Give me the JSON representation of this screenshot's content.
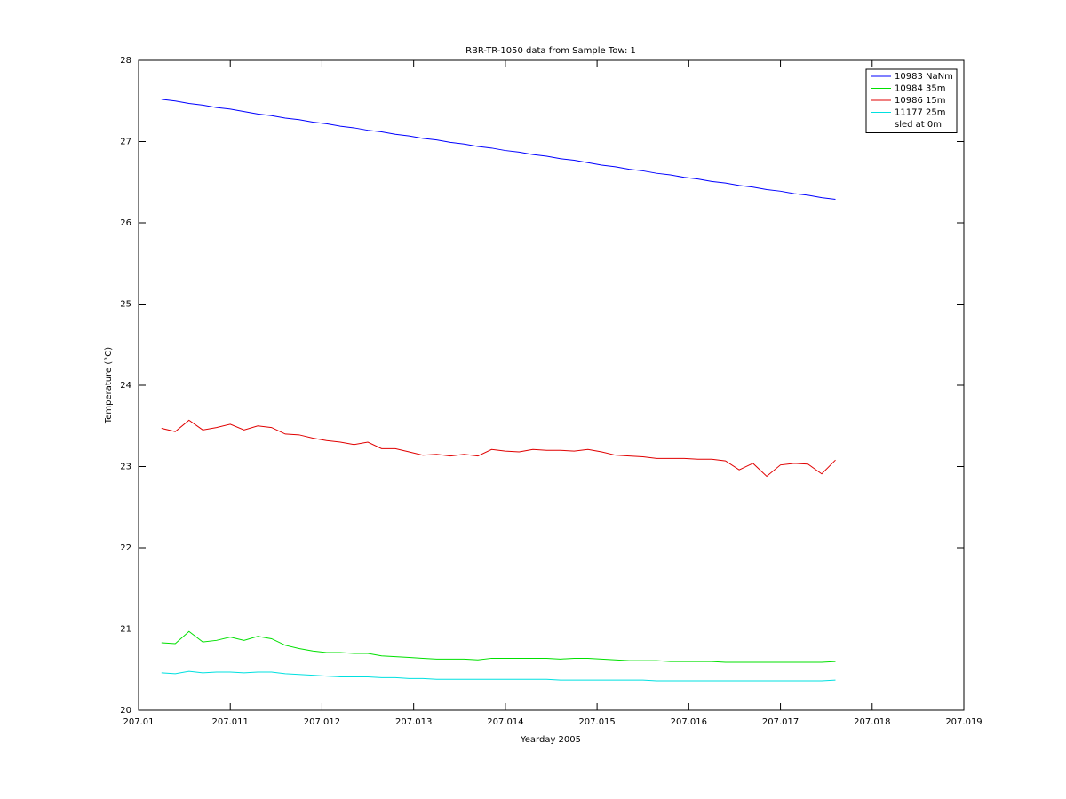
{
  "chart_data": {
    "type": "line",
    "title": "RBR-TR-1050 data from Sample Tow: 1",
    "x_label": "Yearday 2005",
    "y_label": "Temperature (°C)",
    "x": [
      207.01025,
      207.0104,
      207.01055,
      207.0107,
      207.01085,
      207.011,
      207.01115,
      207.0113,
      207.01145,
      207.0116,
      207.01175,
      207.0119,
      207.01205,
      207.0122,
      207.01235,
      207.0125,
      207.01265,
      207.0128,
      207.01295,
      207.0131,
      207.01325,
      207.0134,
      207.01355,
      207.0137,
      207.01385,
      207.014,
      207.01415,
      207.0143,
      207.01445,
      207.0146,
      207.01475,
      207.0149,
      207.01505,
      207.0152,
      207.01535,
      207.0155,
      207.01565,
      207.0158,
      207.01595,
      207.0161,
      207.01625,
      207.0164,
      207.01655,
      207.0167,
      207.01685,
      207.017,
      207.01715,
      207.0173,
      207.01745,
      207.0176
    ],
    "series": [
      {
        "name": "10983 NaNm",
        "color": "#0000ff",
        "values": [
          27.52,
          27.5,
          27.47,
          27.45,
          27.42,
          27.4,
          27.37,
          27.34,
          27.32,
          27.29,
          27.27,
          27.24,
          27.22,
          27.19,
          27.17,
          27.14,
          27.12,
          27.09,
          27.07,
          27.04,
          27.02,
          26.99,
          26.97,
          26.94,
          26.92,
          26.89,
          26.87,
          26.84,
          26.82,
          26.79,
          26.77,
          26.74,
          26.71,
          26.69,
          26.66,
          26.64,
          26.61,
          26.59,
          26.56,
          26.54,
          26.51,
          26.49,
          26.46,
          26.44,
          26.41,
          26.39,
          26.36,
          26.34,
          26.31,
          26.29
        ]
      },
      {
        "name": "10984 35m",
        "color": "#00e000",
        "values": [
          20.83,
          20.82,
          20.97,
          20.84,
          20.86,
          20.9,
          20.86,
          20.91,
          20.88,
          20.8,
          20.76,
          20.73,
          20.71,
          20.71,
          20.7,
          20.7,
          20.67,
          20.66,
          20.65,
          20.64,
          20.63,
          20.63,
          20.63,
          20.62,
          20.64,
          20.64,
          20.64,
          20.64,
          20.64,
          20.63,
          20.64,
          20.64,
          20.63,
          20.62,
          20.61,
          20.61,
          20.61,
          20.6,
          20.6,
          20.6,
          20.6,
          20.59,
          20.59,
          20.59,
          20.59,
          20.59,
          20.59,
          20.59,
          20.59,
          20.6
        ]
      },
      {
        "name": "10986 15m",
        "color": "#e00000",
        "values": [
          23.47,
          23.43,
          23.57,
          23.45,
          23.48,
          23.52,
          23.45,
          23.5,
          23.48,
          23.4,
          23.39,
          23.35,
          23.32,
          23.3,
          23.27,
          23.3,
          23.22,
          23.22,
          23.18,
          23.14,
          23.15,
          23.13,
          23.15,
          23.13,
          23.21,
          23.19,
          23.18,
          23.21,
          23.2,
          23.2,
          23.19,
          23.21,
          23.18,
          23.14,
          23.13,
          23.12,
          23.1,
          23.1,
          23.1,
          23.09,
          23.09,
          23.07,
          22.96,
          23.04,
          22.88,
          23.02,
          23.04,
          23.03,
          22.91,
          23.08
        ]
      },
      {
        "name": "11177 25m",
        "color": "#00e0e0",
        "values": [
          20.46,
          20.45,
          20.48,
          20.46,
          20.47,
          20.47,
          20.46,
          20.47,
          20.47,
          20.45,
          20.44,
          20.43,
          20.42,
          20.41,
          20.41,
          20.41,
          20.4,
          20.4,
          20.39,
          20.39,
          20.38,
          20.38,
          20.38,
          20.38,
          20.38,
          20.38,
          20.38,
          20.38,
          20.38,
          20.37,
          20.37,
          20.37,
          20.37,
          20.37,
          20.37,
          20.37,
          20.36,
          20.36,
          20.36,
          20.36,
          20.36,
          20.36,
          20.36,
          20.36,
          20.36,
          20.36,
          20.36,
          20.36,
          20.36,
          20.37
        ]
      },
      {
        "name": "sled at 0m",
        "color": "#ffffff"
      }
    ],
    "xlim": [
      207.01,
      207.019
    ],
    "xticks": [
      207.01,
      207.011,
      207.012,
      207.013,
      207.014,
      207.015,
      207.016,
      207.017,
      207.018,
      207.019
    ],
    "ylim": [
      20,
      28
    ],
    "yticks": [
      20,
      21,
      22,
      23,
      24,
      25,
      26,
      27,
      28
    ],
    "grid": false,
    "legend": "top-right"
  }
}
